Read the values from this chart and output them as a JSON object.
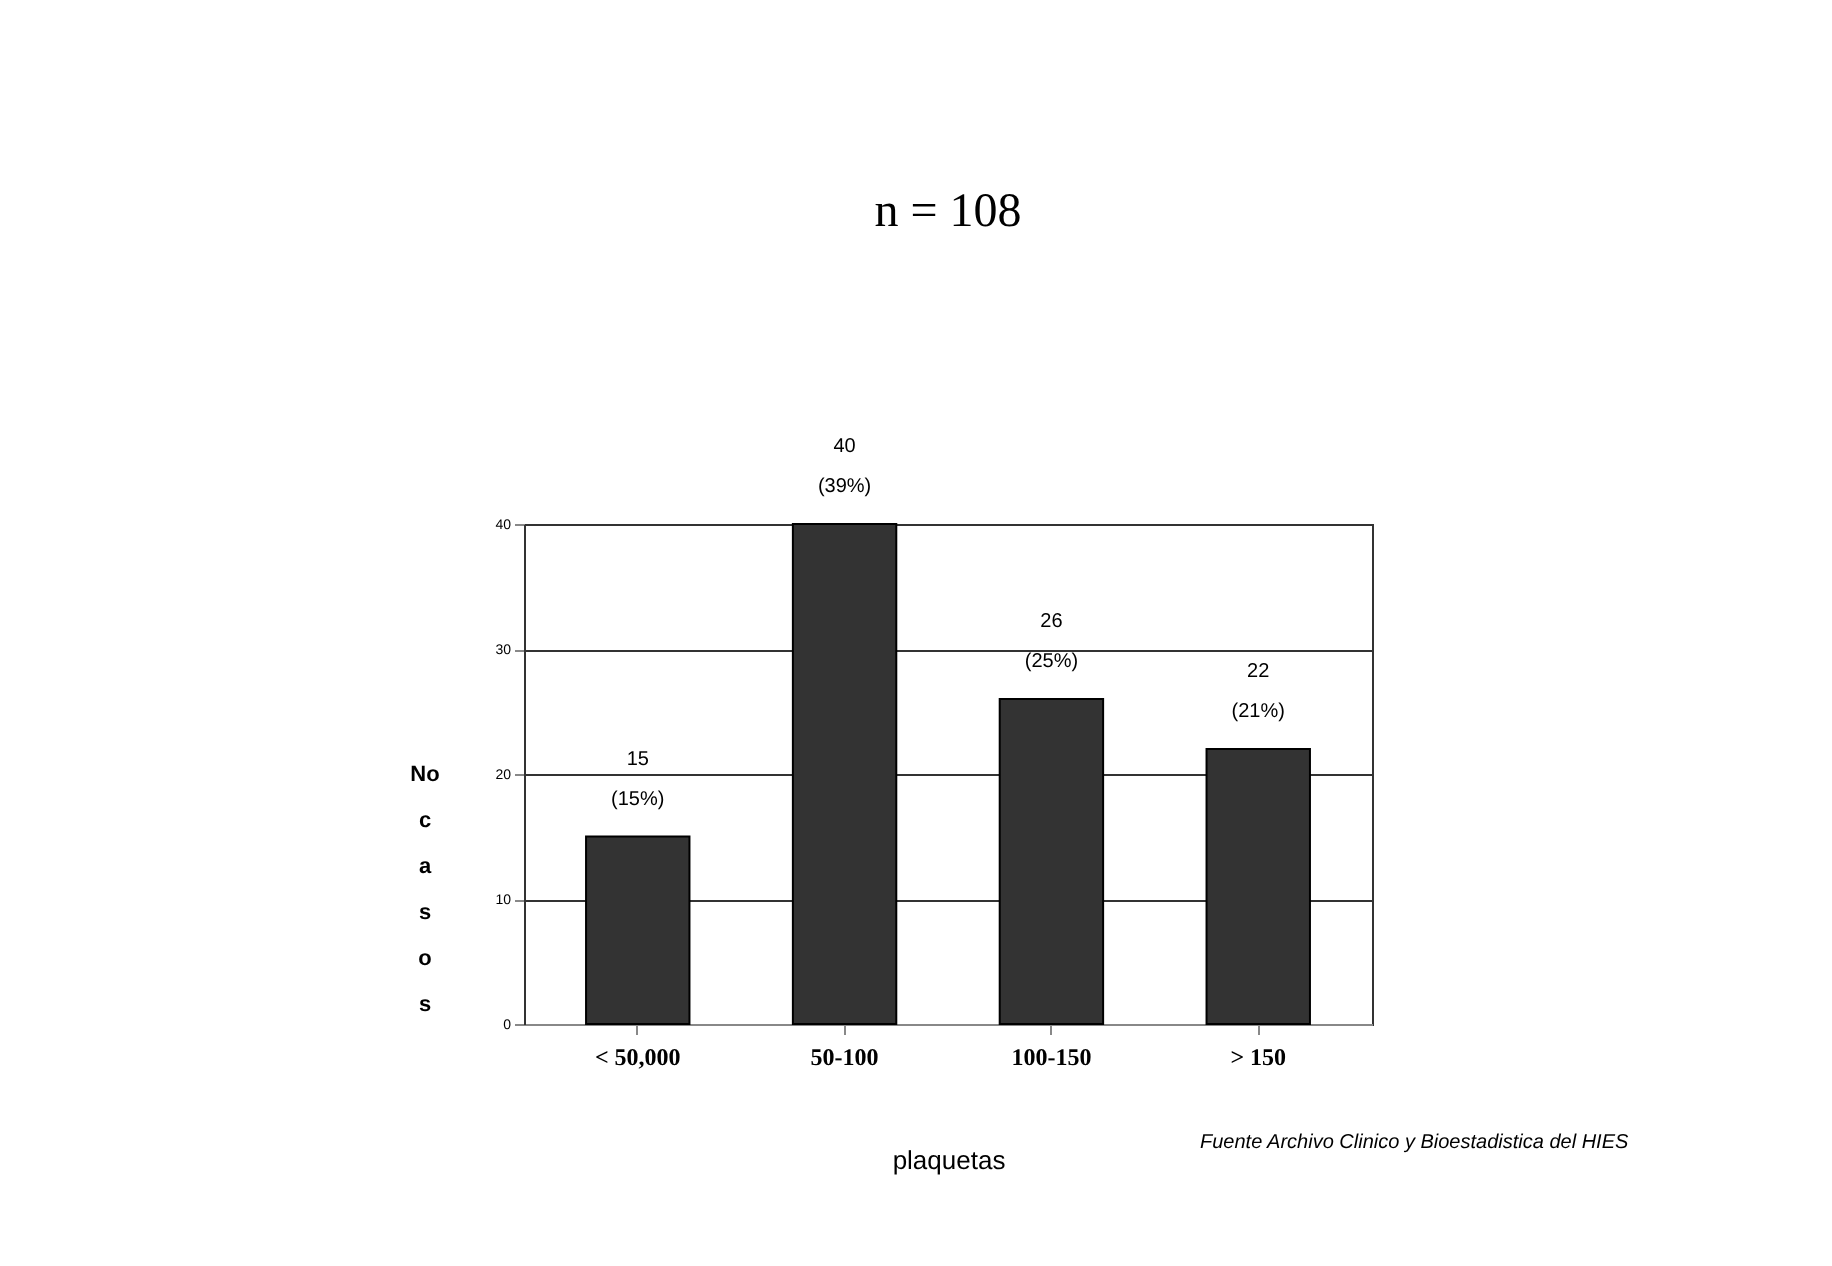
{
  "chart_data": {
    "type": "bar",
    "title": "n = 108",
    "xlabel": "plaquetas",
    "ylabel": "No casos",
    "categories": [
      "< 50,000",
      "50-100",
      "100-150",
      "> 150"
    ],
    "values": [
      15,
      40,
      26,
      22
    ],
    "value_labels": [
      "15 (15%)",
      "40 (39%)",
      "26 (25%)",
      "22 (21%)"
    ],
    "color": "#333333",
    "ylim": [
      0,
      40
    ],
    "yticks": [
      0,
      10,
      20,
      30,
      40
    ],
    "grid": "y",
    "annotations": [
      "Fuente Archivo Clinico y Bioestadistica del HIES"
    ]
  }
}
